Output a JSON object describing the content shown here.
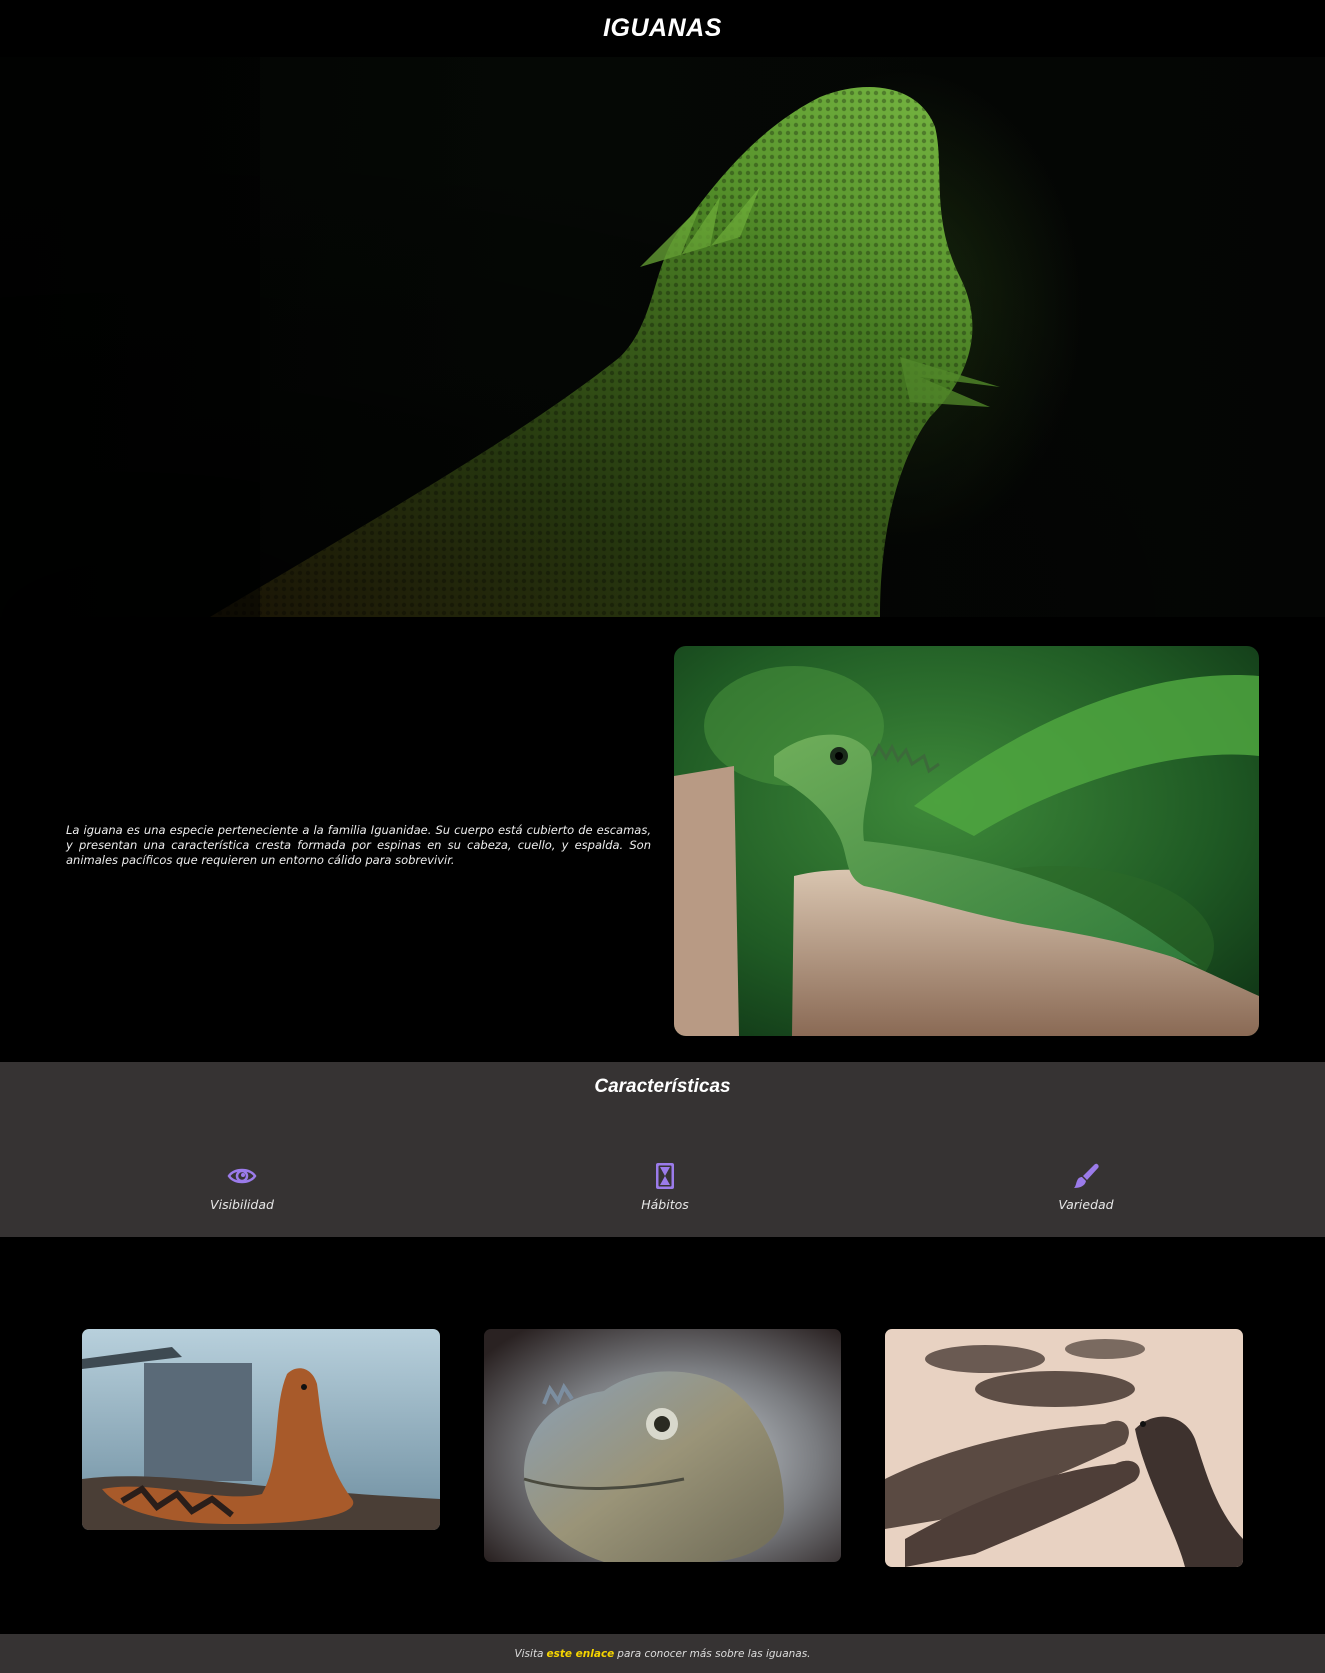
{
  "header": {
    "title": "IGUANAS"
  },
  "hero": {
    "image": "green-iguana-dark-background"
  },
  "intro": {
    "text": "La iguana es una especie perteneciente a la familia Iguanidae. Su cuerpo está cubierto de escamas, y presentan una característica cresta formada por espinas en su cabeza, cuello, y espalda. Son animales pacíficos que requieren un entorno cálido para sobrevivir.",
    "image": "green-iguana-on-tree-stump"
  },
  "features": {
    "title": "Características",
    "accent_color": "#9b7bea",
    "items": [
      {
        "icon": "eye-icon",
        "label": "Visibilidad"
      },
      {
        "icon": "hourglass-icon",
        "label": "Hábitos"
      },
      {
        "icon": "paintbrush-icon",
        "label": "Variedad"
      }
    ]
  },
  "gallery": {
    "images": [
      "orange-iguana-on-shore",
      "rhinoceros-iguana-head",
      "group-of-iguanas-on-sand"
    ]
  },
  "footer": {
    "prefix": "Visita",
    "link_text": "este enlace",
    "suffix": "para conocer más sobre las iguanas.",
    "link_color": "#f5d400"
  }
}
